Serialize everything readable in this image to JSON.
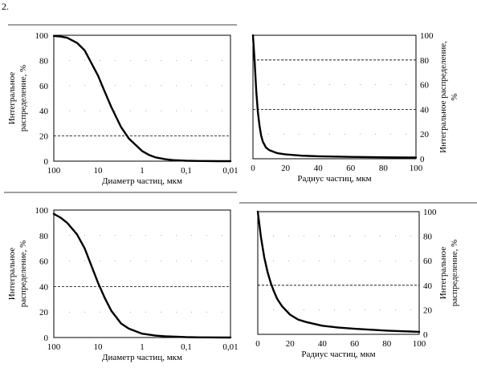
{
  "figure_label": "2.",
  "chart_data": [
    {
      "type": "line",
      "xscale": "log-reversed",
      "xlim": [
        100,
        0.01
      ],
      "ylim": [
        0,
        100
      ],
      "x_ticks": [
        "100",
        "10",
        "1",
        "0,1",
        "0,01"
      ],
      "y_ticks": [
        "0",
        "20",
        "40",
        "60",
        "80",
        "100"
      ],
      "xlabel": "Диаметр частиц, мкм",
      "ylabel_lines": [
        "Интегральное",
        "распределение, %"
      ],
      "reference_line_y": 20,
      "series": [
        {
          "x": [
            100,
            70,
            50,
            30,
            20,
            10,
            7,
            5,
            3,
            2,
            1,
            0.7,
            0.5,
            0.3,
            0.2,
            0.1,
            0.05,
            0.02,
            0.01
          ],
          "y": [
            99.5,
            99,
            98,
            94,
            88,
            68,
            55,
            43,
            27,
            18,
            8,
            5,
            3,
            1.5,
            0.8,
            0.3,
            0.1,
            0,
            0
          ]
        }
      ]
    },
    {
      "type": "line",
      "xlim": [
        0,
        100
      ],
      "ylim": [
        0,
        100
      ],
      "x_ticks": [
        "0",
        "20",
        "40",
        "60",
        "80",
        "100"
      ],
      "y_ticks": [
        "0",
        "20",
        "40",
        "60",
        "80",
        "100"
      ],
      "xlabel": "Радиус частиц, мкм",
      "ylabel_lines": [
        "Интегральное распределение,",
        "%"
      ],
      "reference_line_y": [
        80,
        40
      ],
      "series": [
        {
          "x": [
            0,
            1,
            2,
            3,
            4,
            5,
            6,
            8,
            10,
            15,
            20,
            30,
            40,
            60,
            80,
            100
          ],
          "y": [
            100,
            80,
            55,
            38,
            27,
            19,
            14,
            9,
            7,
            4.5,
            3.5,
            2.5,
            2,
            1.5,
            1.2,
            1
          ]
        }
      ]
    },
    {
      "type": "line",
      "xscale": "log-reversed",
      "xlim": [
        100,
        0.01
      ],
      "ylim": [
        0,
        100
      ],
      "x_ticks": [
        "100",
        "10",
        "1",
        "0,1",
        "0,01"
      ],
      "y_ticks": [
        "0",
        "20",
        "40",
        "60",
        "80",
        "100"
      ],
      "xlabel": "Диаметр частиц, мкм",
      "ylabel_lines": [
        "Интегральное",
        "распределение, %"
      ],
      "reference_line_y": 40,
      "series": [
        {
          "x": [
            100,
            70,
            50,
            30,
            20,
            10,
            7,
            5,
            3,
            2,
            1,
            0.5,
            0.3,
            0.1,
            0.05,
            0.01
          ],
          "y": [
            97,
            94,
            90,
            81,
            70,
            43,
            31,
            21,
            11,
            7,
            3,
            1.5,
            1,
            0.3,
            0.1,
            0
          ]
        }
      ]
    },
    {
      "type": "line",
      "xlim": [
        0,
        100
      ],
      "ylim": [
        0,
        100
      ],
      "x_ticks": [
        "0",
        "20",
        "40",
        "60",
        "80",
        "100"
      ],
      "y_ticks": [
        "0",
        "20",
        "40",
        "60",
        "80",
        "100"
      ],
      "xlabel": "Радиус частиц, мкм",
      "ylabel_lines": [
        "Интегральное",
        "распределение, %"
      ],
      "reference_line_y": 40,
      "series": [
        {
          "x": [
            0,
            2,
            4,
            6,
            8,
            10,
            12,
            15,
            20,
            25,
            30,
            40,
            50,
            60,
            80,
            100
          ],
          "y": [
            100,
            79,
            63,
            51,
            42,
            35,
            29,
            23,
            16,
            12,
            10,
            7,
            5.5,
            4.5,
            3,
            2
          ]
        }
      ]
    }
  ]
}
